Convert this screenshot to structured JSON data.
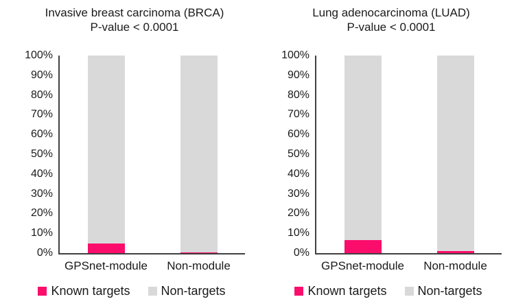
{
  "figure": {
    "background": "#ffffff",
    "axis_color": "#404040",
    "text_color": "#1a1a1a"
  },
  "chart_data": [
    {
      "type": "bar",
      "stacked": true,
      "title": "Invasive breast carcinoma (BRCA)",
      "subtitle": "P-value < 0.0001",
      "categories": [
        "GPSnet-module",
        "Non-module"
      ],
      "series": [
        {
          "name": "Known targets",
          "color": "#FB0D6B",
          "values": [
            5,
            0.5
          ]
        },
        {
          "name": "Non-targets",
          "color": "#D9D9D9",
          "values": [
            95,
            99.5
          ]
        }
      ],
      "xlabel": "",
      "ylabel": "",
      "ylim": [
        0,
        100
      ],
      "ytick_step": 10,
      "ytick_suffix": "%",
      "grid": false,
      "legend_position": "bottom"
    },
    {
      "type": "bar",
      "stacked": true,
      "title": "Lung adenocarcinoma (LUAD)",
      "subtitle": "P-value < 0.0001",
      "categories": [
        "GPSnet-module",
        "Non-module"
      ],
      "series": [
        {
          "name": "Known targets",
          "color": "#FB0D6B",
          "values": [
            6.5,
            1
          ]
        },
        {
          "name": "Non-targets",
          "color": "#D9D9D9",
          "values": [
            93.5,
            99
          ]
        }
      ],
      "xlabel": "",
      "ylabel": "",
      "ylim": [
        0,
        100
      ],
      "ytick_step": 10,
      "ytick_suffix": "%",
      "grid": false,
      "legend_position": "bottom"
    }
  ]
}
